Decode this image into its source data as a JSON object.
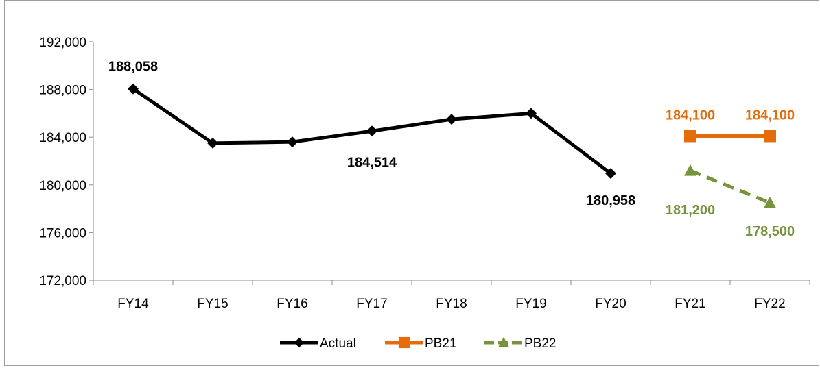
{
  "chart_data": {
    "type": "line",
    "title": "",
    "xlabel": "",
    "ylabel": "",
    "categories": [
      "FY14",
      "FY15",
      "FY16",
      "FY17",
      "FY18",
      "FY19",
      "FY20",
      "FY21",
      "FY22"
    ],
    "ylim": [
      172000,
      192000
    ],
    "yticks": [
      172000,
      176000,
      180000,
      184000,
      188000,
      192000
    ],
    "ytick_labels": [
      "172,000",
      "176,000",
      "180,000",
      "184,000",
      "188,000",
      "192,000"
    ],
    "grid": false,
    "legend_position": "bottom",
    "series": [
      {
        "name": "Actual",
        "color": "#000000",
        "marker": "diamond",
        "dash": "solid",
        "values": [
          188058,
          183500,
          183600,
          184514,
          185500,
          186000,
          180958,
          null,
          null
        ]
      },
      {
        "name": "PB21",
        "color": "#E46C0A",
        "marker": "square",
        "dash": "solid",
        "values": [
          null,
          null,
          null,
          null,
          null,
          null,
          null,
          184100,
          184100
        ]
      },
      {
        "name": "PB22",
        "color": "#77933C",
        "marker": "triangle",
        "dash": "dashed",
        "values": [
          null,
          null,
          null,
          null,
          null,
          null,
          null,
          181200,
          178500
        ]
      }
    ],
    "data_labels": [
      {
        "series": 0,
        "index": 0,
        "text": "188,058",
        "color": "#000000"
      },
      {
        "series": 0,
        "index": 3,
        "text": "184,514",
        "color": "#000000"
      },
      {
        "series": 0,
        "index": 6,
        "text": "180,958",
        "color": "#000000"
      },
      {
        "series": 1,
        "index": 7,
        "text": "184,100",
        "color": "#E46C0A"
      },
      {
        "series": 1,
        "index": 8,
        "text": "184,100",
        "color": "#E46C0A"
      },
      {
        "series": 2,
        "index": 7,
        "text": "181,200",
        "color": "#77933C"
      },
      {
        "series": 2,
        "index": 8,
        "text": "178,500",
        "color": "#77933C"
      }
    ]
  }
}
